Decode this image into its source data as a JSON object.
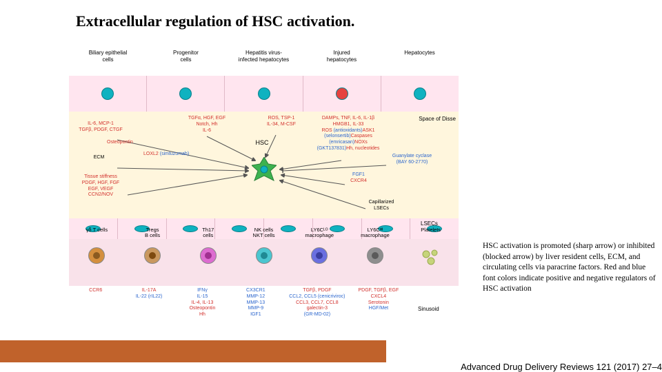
{
  "title": "Extracellular regulation of HSC activation.",
  "caption": "HSC activation is promoted (sharp arrow) or inhibited (blocked arrow) by liver resident cells, ECM, and circulating cells via paracrine factors. Red and blue font colors indicate positive and negative regulators of HSC activation",
  "citation": "Advanced Drug Delivery Reviews 121 (2017) 27–4",
  "topCells": [
    {
      "label": "Biliary epithelial\ncells",
      "fill": "#ffe5ef"
    },
    {
      "label": "Progenitor\ncells",
      "fill": "#ffe5ef"
    },
    {
      "label": "Hepatitis virus-\ninfected hepatocytes",
      "fill": "#ffe5ef"
    },
    {
      "label": "Injured\nhepatocytes",
      "fill": "#ffe5ef",
      "injured": true
    },
    {
      "label": "Hepatocytes",
      "fill": "#ffe5ef"
    }
  ],
  "hscLabel": "HSC",
  "disseLabel": "Space of Disse",
  "lsecsLabel": "LSECs",
  "capLabel": "Capillarized\nLSECs",
  "sinusoidLabel": "Sinusoid",
  "midTexts": {
    "left1": [
      {
        "t": "IL-6, MCP-1",
        "c": "red"
      },
      {
        "t": "TGFβ, PDGF, CTGF",
        "c": "red"
      }
    ],
    "osteo": [
      {
        "t": "Osteopontin",
        "c": "red"
      }
    ],
    "ecm": [
      {
        "t": "ECM",
        "c": "#000"
      }
    ],
    "left3": [
      {
        "t": "Tissue stiffness",
        "c": "red"
      },
      {
        "t": "PDGF, HGF, FGF",
        "c": "red"
      },
      {
        "t": "EGF, VEGF",
        "c": "red"
      },
      {
        "t": "CCN2/NOV",
        "c": "red"
      }
    ],
    "loxl": [
      {
        "t": "LOXL2 ",
        "c": "red"
      },
      {
        "t": "(simtuzumab)",
        "c": "blue"
      }
    ],
    "mid1": [
      {
        "t": "TGFα, HGF, EGF",
        "c": "red"
      },
      {
        "t": "Notch, Hh",
        "c": "red"
      },
      {
        "t": "IL-6",
        "c": "red"
      }
    ],
    "mid2": [
      {
        "t": "ROS, TSP-1",
        "c": "red"
      },
      {
        "t": "IL-34, M-CSF",
        "c": "red"
      }
    ],
    "mid3": [
      {
        "t": "DAMPs, TNF, IL-6, IL-1β",
        "c": "red"
      },
      {
        "t": "HMGB1, IL-33",
        "c": "red"
      },
      {
        "t": "ROS ",
        "c": "red"
      },
      {
        "t": "(antioxidants)",
        "c": "blue"
      },
      {
        "t": "\nASK1 ",
        "c": "red"
      },
      {
        "t": "(selonsertib)",
        "c": "blue"
      },
      {
        "t": "\nCaspases ",
        "c": "red"
      },
      {
        "t": "(emricasan)",
        "c": "blue"
      },
      {
        "t": "\nNOXs ",
        "c": "red"
      },
      {
        "t": "(GKT137831)",
        "c": "blue"
      },
      {
        "t": "\nHh, nucleotides",
        "c": "red"
      }
    ],
    "right1": [
      {
        "t": "FGF1",
        "c": "blue"
      },
      {
        "t": "CXCR4",
        "c": "red"
      }
    ],
    "right2": [
      {
        "t": "Guanylate cyclase",
        "c": "blue"
      },
      {
        "t": "(BAY 60-2770)",
        "c": "blue"
      }
    ]
  },
  "bloodCells": [
    {
      "label": "γδ T cells",
      "outer": "#d48f3e",
      "inner": "#8a5a20"
    },
    {
      "label": "Tregs\nB cells",
      "outer": "#c9985f",
      "inner": "#7d4a10"
    },
    {
      "label": "Th17\ncells",
      "outer": "#dd6cd0",
      "inner": "#a03090"
    },
    {
      "label": "NK cells\nNKT cells",
      "outer": "#4bc6d0",
      "inner": "#1f8a94"
    },
    {
      "label": "LY6Cᴸᴼ\nmacrophage",
      "outer": "#6a6fe0",
      "inner": "#3a3ea0"
    },
    {
      "label": "LY6Cᴴᴵ\nmacrophage",
      "outer": "#8e8e8e",
      "inner": "#5a5a5a"
    },
    {
      "label": "Platelets",
      "outer": "#c6d47b",
      "inner": "#c6d47b"
    }
  ],
  "secretions": [
    [
      {
        "t": "CCR6",
        "c": "red"
      }
    ],
    [
      {
        "t": "IL-17A",
        "c": "red"
      },
      {
        "t": "IL-22 (rIL22)",
        "c": "blue"
      }
    ],
    [
      {
        "t": "IFNγ",
        "c": "blue"
      },
      {
        "t": "IL-15",
        "c": "blue"
      },
      {
        "t": "IL-4, IL-13",
        "c": "red"
      },
      {
        "t": "Osteopontin",
        "c": "red"
      },
      {
        "t": "Hh",
        "c": "red"
      }
    ],
    [
      {
        "t": "CX3CR1",
        "c": "blue"
      },
      {
        "t": "MMP-12",
        "c": "blue"
      },
      {
        "t": "MMP-13",
        "c": "blue"
      },
      {
        "t": "MMP-9",
        "c": "blue"
      },
      {
        "t": "IGF1",
        "c": "blue"
      }
    ],
    [
      {
        "t": "TGFβ, PDGF",
        "c": "red"
      },
      {
        "t": "CCL2, CCL5 (cenicriviroc)",
        "c": "blue"
      },
      {
        "t": "CCL3, CCL7, CCL8",
        "c": "red"
      },
      {
        "t": "galectin-3 ",
        "c": "red"
      },
      {
        "t": "(GR-MD-02)",
        "c": "blue"
      }
    ],
    [
      {
        "t": "PDGF, TGFβ, EGF",
        "c": "red"
      },
      {
        "t": "CXCL4",
        "c": "red"
      },
      {
        "t": "Serotonin",
        "c": "red"
      },
      {
        "t": "HGF/Met",
        "c": "blue"
      }
    ],
    []
  ],
  "colors": {
    "epithelial": "#ffe5ef",
    "disse": "#fff6dd",
    "sinusoid": "#f9e2ea",
    "nucleus": "#0fb2c0",
    "injured": "#e5423f",
    "footer": "#c0622b",
    "hsc": "#3db24f"
  }
}
